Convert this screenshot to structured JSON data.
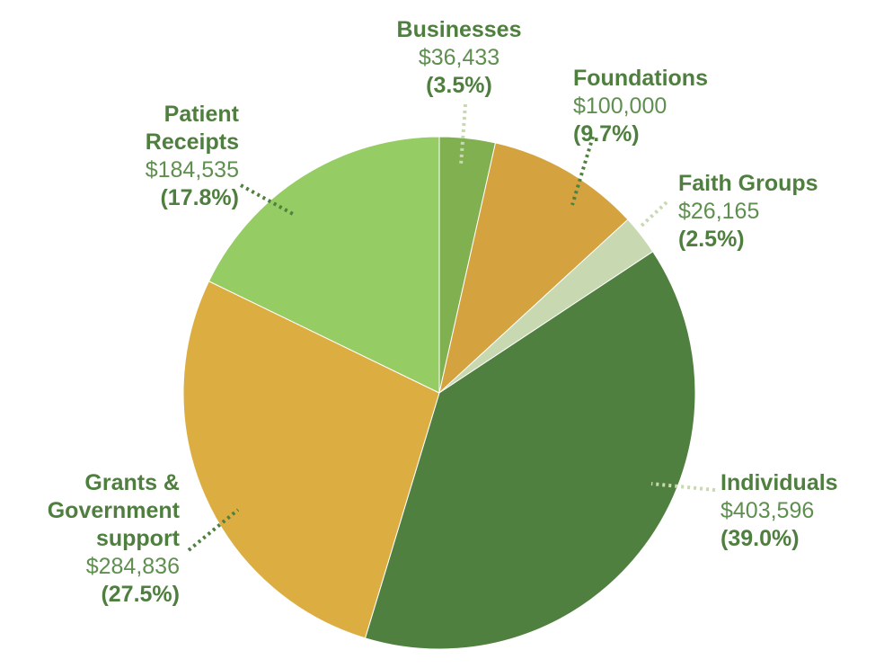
{
  "chart_data": {
    "type": "pie",
    "title": "",
    "start_angle": "12 o'clock",
    "direction": "clockwise",
    "slices": [
      {
        "name_lines": [
          "Businesses"
        ],
        "amount": "$36,433",
        "value": 36433,
        "percent": "(3.5%)",
        "color": "#80b050",
        "leader_color": "#c8d8b0"
      },
      {
        "name_lines": [
          "Foundations"
        ],
        "amount": "$100,000",
        "value": 100000,
        "percent": "(9.7%)",
        "color": "#d4a23e",
        "leader_color": "#508040"
      },
      {
        "name_lines": [
          "Faith Groups"
        ],
        "amount": "$26,165",
        "value": 26165,
        "percent": "(2.5%)",
        "color": "#c8d8b0",
        "leader_color": "#c8d8b0"
      },
      {
        "name_lines": [
          "Individuals"
        ],
        "amount": "$403,596",
        "value": 403596,
        "percent": "(39.0%)",
        "color": "#508040",
        "leader_color": "#c8d8b0"
      },
      {
        "name_lines": [
          "Grants &",
          "Government",
          "support"
        ],
        "amount": "$284,836",
        "value": 284836,
        "percent": "(27.5%)",
        "color": "#dcae42",
        "leader_color": "#508040"
      },
      {
        "name_lines": [
          "Patient",
          "Receipts"
        ],
        "amount": "$184,535",
        "value": 184535,
        "percent": "(17.8%)",
        "color": "#96cc64",
        "leader_color": "#508040"
      }
    ]
  }
}
